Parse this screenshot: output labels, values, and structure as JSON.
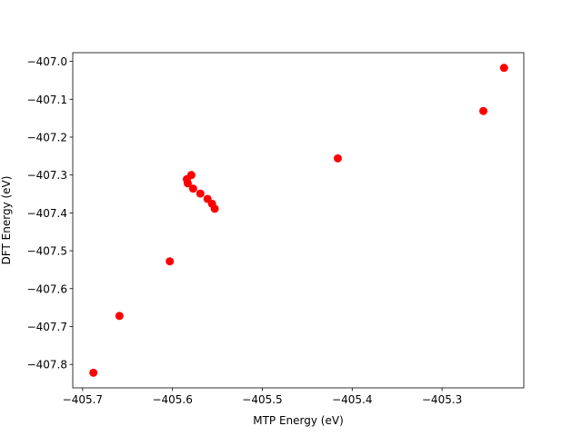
{
  "chart_data": {
    "type": "scatter",
    "xlabel": "MTP Energy (eV)",
    "ylabel": "DFT Energy (eV)",
    "xlim": [
      -405.711,
      -405.209
    ],
    "ylim": [
      -407.862,
      -406.977
    ],
    "grid": false,
    "marker_color": "#ff0000",
    "xticks": [
      -405.7,
      -405.6,
      -405.5,
      -405.4,
      -405.3
    ],
    "xtick_labels": [
      "−405.7",
      "−405.6",
      "−405.5",
      "−405.4",
      "−405.3"
    ],
    "yticks": [
      -407.0,
      -407.1,
      -407.2,
      -407.3,
      -407.4,
      -407.5,
      -407.6,
      -407.7,
      -407.8
    ],
    "ytick_labels": [
      "−407.0",
      "−407.1",
      "−407.2",
      "−407.3",
      "−407.4",
      "−407.5",
      "−407.6",
      "−407.7",
      "−407.8"
    ],
    "points": [
      {
        "x": -405.688,
        "y": -407.822
      },
      {
        "x": -405.659,
        "y": -407.672
      },
      {
        "x": -405.603,
        "y": -407.528
      },
      {
        "x": -405.584,
        "y": -407.311
      },
      {
        "x": -405.583,
        "y": -407.322
      },
      {
        "x": -405.579,
        "y": -407.3
      },
      {
        "x": -405.577,
        "y": -407.336
      },
      {
        "x": -405.569,
        "y": -407.349
      },
      {
        "x": -405.561,
        "y": -407.363
      },
      {
        "x": -405.556,
        "y": -407.376
      },
      {
        "x": -405.553,
        "y": -407.389
      },
      {
        "x": -405.416,
        "y": -407.256
      },
      {
        "x": -405.254,
        "y": -407.131
      },
      {
        "x": -405.231,
        "y": -407.017
      }
    ]
  }
}
